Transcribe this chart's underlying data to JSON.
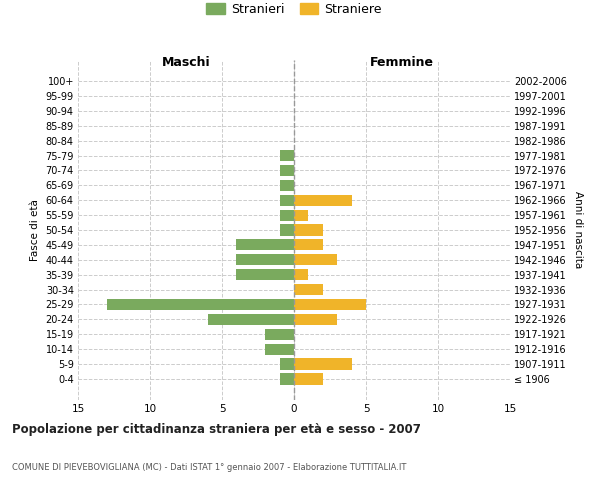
{
  "age_groups": [
    "100+",
    "95-99",
    "90-94",
    "85-89",
    "80-84",
    "75-79",
    "70-74",
    "65-69",
    "60-64",
    "55-59",
    "50-54",
    "45-49",
    "40-44",
    "35-39",
    "30-34",
    "25-29",
    "20-24",
    "15-19",
    "10-14",
    "5-9",
    "0-4"
  ],
  "birth_years": [
    "≤ 1906",
    "1907-1911",
    "1912-1916",
    "1917-1921",
    "1922-1926",
    "1927-1931",
    "1932-1936",
    "1937-1941",
    "1942-1946",
    "1947-1951",
    "1952-1956",
    "1957-1961",
    "1962-1966",
    "1967-1971",
    "1972-1976",
    "1977-1981",
    "1982-1986",
    "1987-1991",
    "1992-1996",
    "1997-2001",
    "2002-2006"
  ],
  "males": [
    0,
    0,
    0,
    0,
    0,
    -1,
    -1,
    -1,
    -1,
    -1,
    -1,
    -4,
    -4,
    -4,
    0,
    -13,
    -6,
    -2,
    -2,
    -1,
    -1
  ],
  "females": [
    0,
    0,
    0,
    0,
    0,
    0,
    0,
    0,
    4,
    1,
    2,
    2,
    3,
    1,
    2,
    5,
    3,
    0,
    0,
    4,
    2
  ],
  "male_color": "#7aaa5e",
  "female_color": "#f0b429",
  "dashed_line_color": "#999999",
  "grid_color": "#cccccc",
  "background_color": "#ffffff",
  "title": "Popolazione per cittadinanza straniera per età e sesso - 2007",
  "subtitle": "COMUNE DI PIEVEBOVIGLIANA (MC) - Dati ISTAT 1° gennaio 2007 - Elaborazione TUTTITALIA.IT",
  "xlabel_left": "Maschi",
  "xlabel_right": "Femmine",
  "ylabel_left": "Fasce di età",
  "ylabel_right": "Anni di nascita",
  "legend_males": "Stranieri",
  "legend_females": "Straniere",
  "xlim": [
    -15,
    15
  ],
  "xticks": [
    -15,
    -10,
    -5,
    0,
    5,
    10,
    15
  ],
  "xticklabels": [
    "15",
    "10",
    "5",
    "0",
    "5",
    "10",
    "15"
  ]
}
